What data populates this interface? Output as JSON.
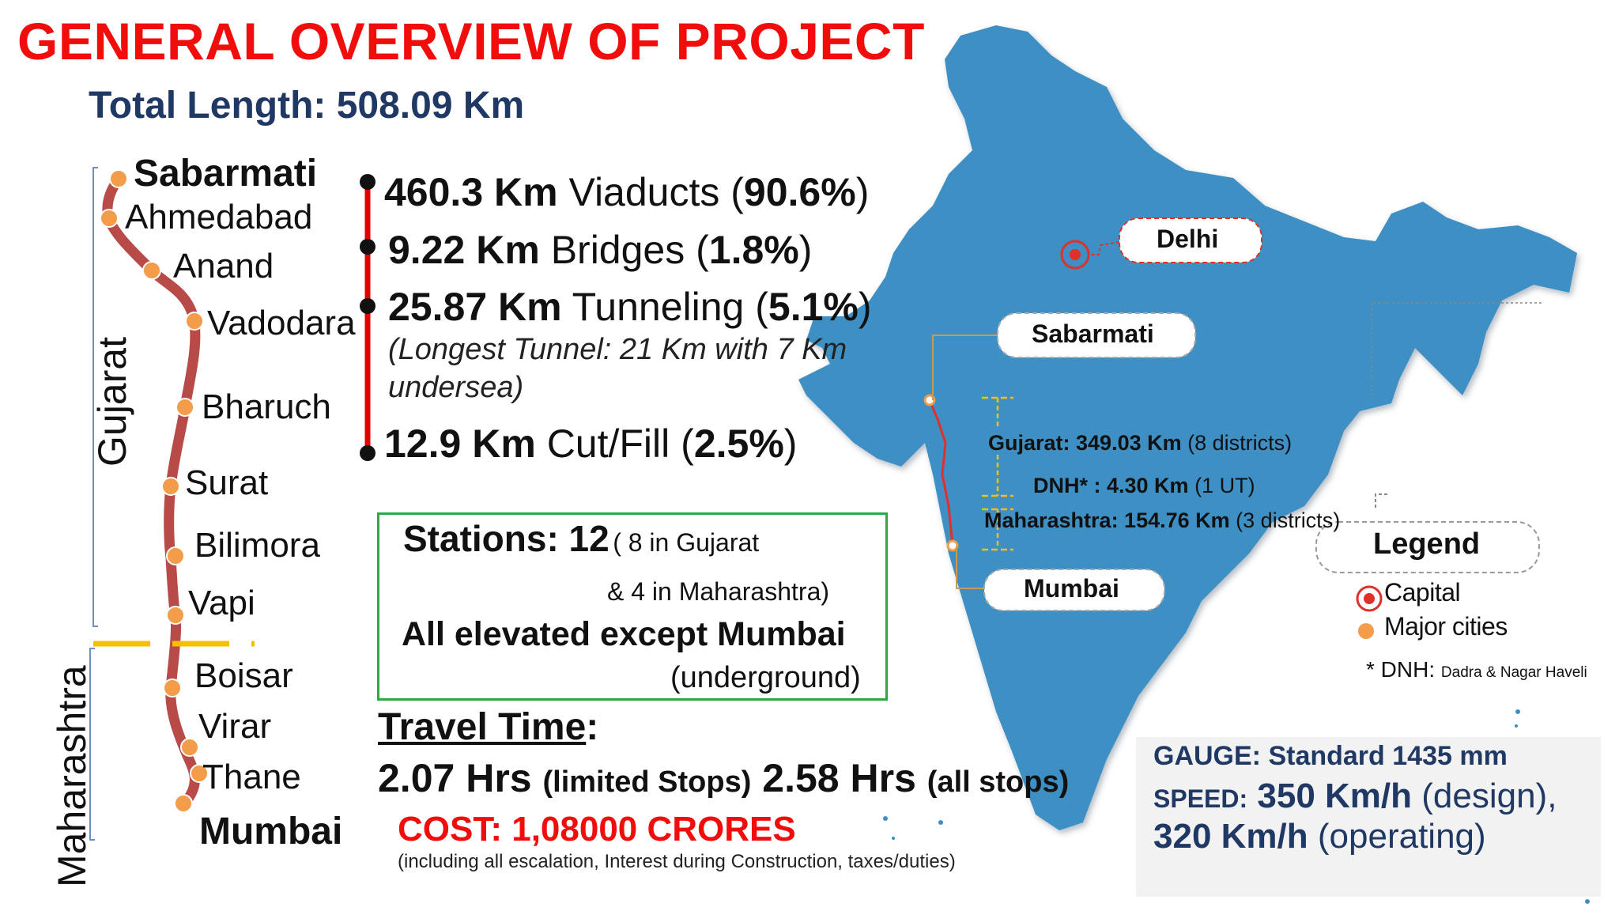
{
  "title": "GENERAL OVERVIEW OF PROJECT",
  "total_length": {
    "label": "Total Length:",
    "value": "508.09 Km"
  },
  "route_stations": [
    {
      "name": "Sabarmati",
      "bold": true
    },
    {
      "name": "Ahmedabad",
      "bold": false
    },
    {
      "name": "Anand",
      "bold": false
    },
    {
      "name": "Vadodara",
      "bold": false
    },
    {
      "name": "Bharuch",
      "bold": false
    },
    {
      "name": "Surat",
      "bold": false
    },
    {
      "name": "Bilimora",
      "bold": false
    },
    {
      "name": "Vapi",
      "bold": false
    },
    {
      "name": "Boisar",
      "bold": false
    },
    {
      "name": "Virar",
      "bold": false
    },
    {
      "name": "Thane",
      "bold": false
    },
    {
      "name": "Mumbai",
      "bold": true
    }
  ],
  "regions": {
    "gujarat": "Gujarat",
    "maharashtra": "Maharashtra"
  },
  "features": [
    {
      "length": "460.3 Km",
      "type": "Viaducts",
      "pct": "90.6%"
    },
    {
      "length": "9.22 Km",
      "type": "Bridges",
      "pct": "1.8%"
    },
    {
      "length": "25.87 Km",
      "type": "Tunneling",
      "pct": "5.1%"
    },
    {
      "length": "12.9 Km",
      "type": "Cut/Fill",
      "pct": "2.5%"
    }
  ],
  "tunnel_note": "(Longest Tunnel: 21 Km with 7 Km undersea)",
  "stations_box": {
    "label": "Stations: 12",
    "detail1": "( 8 in Gujarat",
    "detail2": "& 4 in Maharashtra)",
    "elevated": "All elevated except Mumbai",
    "underground": "(underground)"
  },
  "travel": {
    "heading": "Travel Time",
    "colon": ":",
    "limited_time": "2.07 Hrs",
    "limited_label": "(limited Stops)",
    "all_time": "2.58 Hrs",
    "all_label": "(all stops)"
  },
  "cost": {
    "text": "COST: 1,08000 CRORES",
    "note": "(including all escalation, Interest during Construction, taxes/duties)"
  },
  "map": {
    "delhi": "Delhi",
    "sabarmati": "Sabarmati",
    "mumbai": "Mumbai",
    "gujarat_label": "Gujarat: 349.03 Km",
    "gujarat_detail": "(8 districts)",
    "dnh_label": "DNH* : 4.30 Km",
    "dnh_detail": "(1 UT)",
    "maha_label": "Maharashtra: 154.76 Km",
    "maha_detail": "(3 districts)",
    "map_color": "#3e8fc4",
    "route_color": "#e0302a"
  },
  "legend": {
    "title": "Legend",
    "capital": "Capital",
    "major": "Major cities",
    "dnh_prefix": "* DNH:",
    "dnh_full": "Dadra & Nagar Haveli"
  },
  "specs": {
    "gauge": "GAUGE: Standard 1435 mm",
    "speed_label": "SPEED:",
    "speed_design": "350 Km/h",
    "design_label": "(design),",
    "speed_operating": "320 Km/h",
    "operating_label": "(operating)"
  },
  "colors": {
    "title_red": "#f20d0d",
    "navy": "#1f3864",
    "route_line": "#b84a48",
    "station_dot": "#f39c4a",
    "border_yellow": "#f5c000",
    "box_green": "#2aa84a"
  }
}
